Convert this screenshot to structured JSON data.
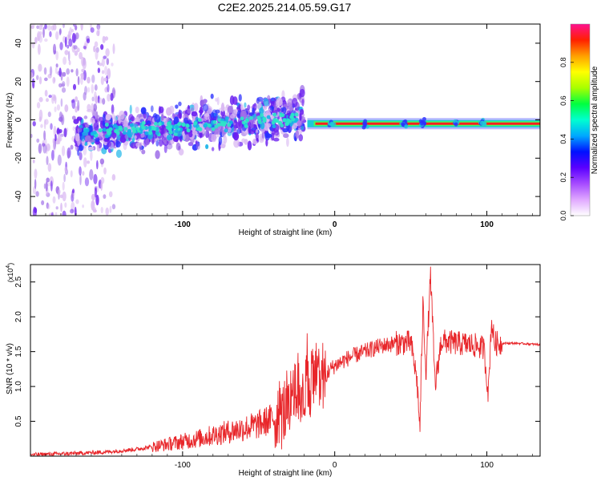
{
  "title": "C2E2.2025.214.05.59.G17",
  "colors": {
    "snr_line": "#e8262a",
    "band_core": "#ff1f1f",
    "scatter": [
      "#d9b8f2",
      "#a070e8",
      "#6a1ef0",
      "#2a30ff",
      "#17b4e8",
      "#2ee6c8"
    ]
  },
  "chart_data": [
    {
      "type": "heatmap",
      "xlabel": "Height of straight line (km)",
      "ylabel": "Frequency (Hz)",
      "xlim": [
        -200,
        135
      ],
      "ylim": [
        -50,
        50
      ],
      "x_ticks": [
        -100,
        0,
        100
      ],
      "y_ticks": [
        -40,
        -20,
        0,
        20,
        40
      ],
      "grid": false,
      "regions": [
        {
          "x": [
            -200,
            -170
          ],
          "description": "sparse scattered power over full band",
          "y_spread": 50
        },
        {
          "x": [
            -170,
            -20
          ],
          "description": "broad noisy band around 0 Hz",
          "center_freq": [
            -8,
            2
          ],
          "y_spread": [
            10,
            15
          ]
        },
        {
          "x": [
            -18,
            135
          ],
          "description": "narrow high-amplitude line near 0 Hz",
          "center_freq": -2,
          "amplitude": 0.95
        }
      ],
      "colorbar": {
        "label": "Normalized spectral amplitude",
        "range": [
          0,
          1
        ],
        "ticks": [
          "0.0",
          "0.2",
          "0.4",
          "0.6",
          "0.8"
        ],
        "colormap": [
          "#ffffff",
          "#e0a8ff",
          "#a64bff",
          "#5a00ff",
          "#0010ff",
          "#00a8ff",
          "#00ffd0",
          "#00ff40",
          "#a8ff00",
          "#ffff00",
          "#ffa000",
          "#ff2000",
          "#ff1090"
        ]
      }
    },
    {
      "type": "line",
      "xlabel": "Height of straight line (km)",
      "ylabel": "SNR (10 * v/v)",
      "multiplier_label": "(x10",
      "multiplier_exp": "4",
      "multiplier_close": ")",
      "xlim": [
        -200,
        135
      ],
      "ylim": [
        0,
        2.75
      ],
      "x_ticks": [
        -100,
        0,
        100
      ],
      "y_ticks": [
        "0.5",
        "1.0",
        "1.5",
        "2.0",
        "2.5"
      ],
      "grid": false,
      "series": [
        {
          "x": [
            -200,
            -170,
            -150,
            -130,
            -110,
            -90,
            -70,
            -50,
            -40,
            -30,
            -25,
            -20,
            -15,
            -10,
            -5,
            0,
            10,
            20,
            30,
            40,
            50,
            54,
            56,
            58,
            60,
            63,
            66,
            70,
            80,
            90,
            98,
            101,
            103,
            105,
            110,
            120,
            135
          ],
          "y": [
            0.02,
            0.04,
            0.06,
            0.1,
            0.17,
            0.25,
            0.35,
            0.45,
            0.55,
            0.7,
            0.85,
            0.95,
            1.05,
            1.15,
            1.2,
            1.3,
            1.42,
            1.5,
            1.58,
            1.62,
            1.63,
            1.1,
            0.4,
            2.2,
            1.2,
            2.6,
            1.0,
            1.65,
            1.62,
            1.6,
            1.55,
            0.9,
            1.95,
            1.62,
            1.62,
            1.62,
            1.6
          ]
        }
      ]
    }
  ]
}
